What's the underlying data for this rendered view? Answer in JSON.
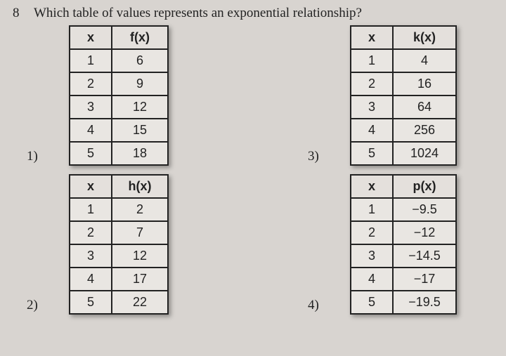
{
  "question": {
    "number": "8",
    "text": "Which table of values represents an exponential relationship?"
  },
  "tables": {
    "t1": {
      "label": "1)",
      "x_header": "x",
      "y_header": "f(x)",
      "rows": [
        {
          "x": "1",
          "y": "6"
        },
        {
          "x": "2",
          "y": "9"
        },
        {
          "x": "3",
          "y": "12"
        },
        {
          "x": "4",
          "y": "15"
        },
        {
          "x": "5",
          "y": "18"
        }
      ]
    },
    "t2": {
      "label": "2)",
      "x_header": "x",
      "y_header": "h(x)",
      "rows": [
        {
          "x": "1",
          "y": "2"
        },
        {
          "x": "2",
          "y": "7"
        },
        {
          "x": "3",
          "y": "12"
        },
        {
          "x": "4",
          "y": "17"
        },
        {
          "x": "5",
          "y": "22"
        }
      ]
    },
    "t3": {
      "label": "3)",
      "x_header": "x",
      "y_header": "k(x)",
      "rows": [
        {
          "x": "1",
          "y": "4"
        },
        {
          "x": "2",
          "y": "16"
        },
        {
          "x": "3",
          "y": "64"
        },
        {
          "x": "4",
          "y": "256"
        },
        {
          "x": "5",
          "y": "1024"
        }
      ]
    },
    "t4": {
      "label": "4)",
      "x_header": "x",
      "y_header": "p(x)",
      "rows": [
        {
          "x": "1",
          "y": "−9.5"
        },
        {
          "x": "2",
          "y": "−12"
        },
        {
          "x": "3",
          "y": "−14.5"
        },
        {
          "x": "4",
          "y": "−17"
        },
        {
          "x": "5",
          "y": "−19.5"
        }
      ]
    }
  }
}
